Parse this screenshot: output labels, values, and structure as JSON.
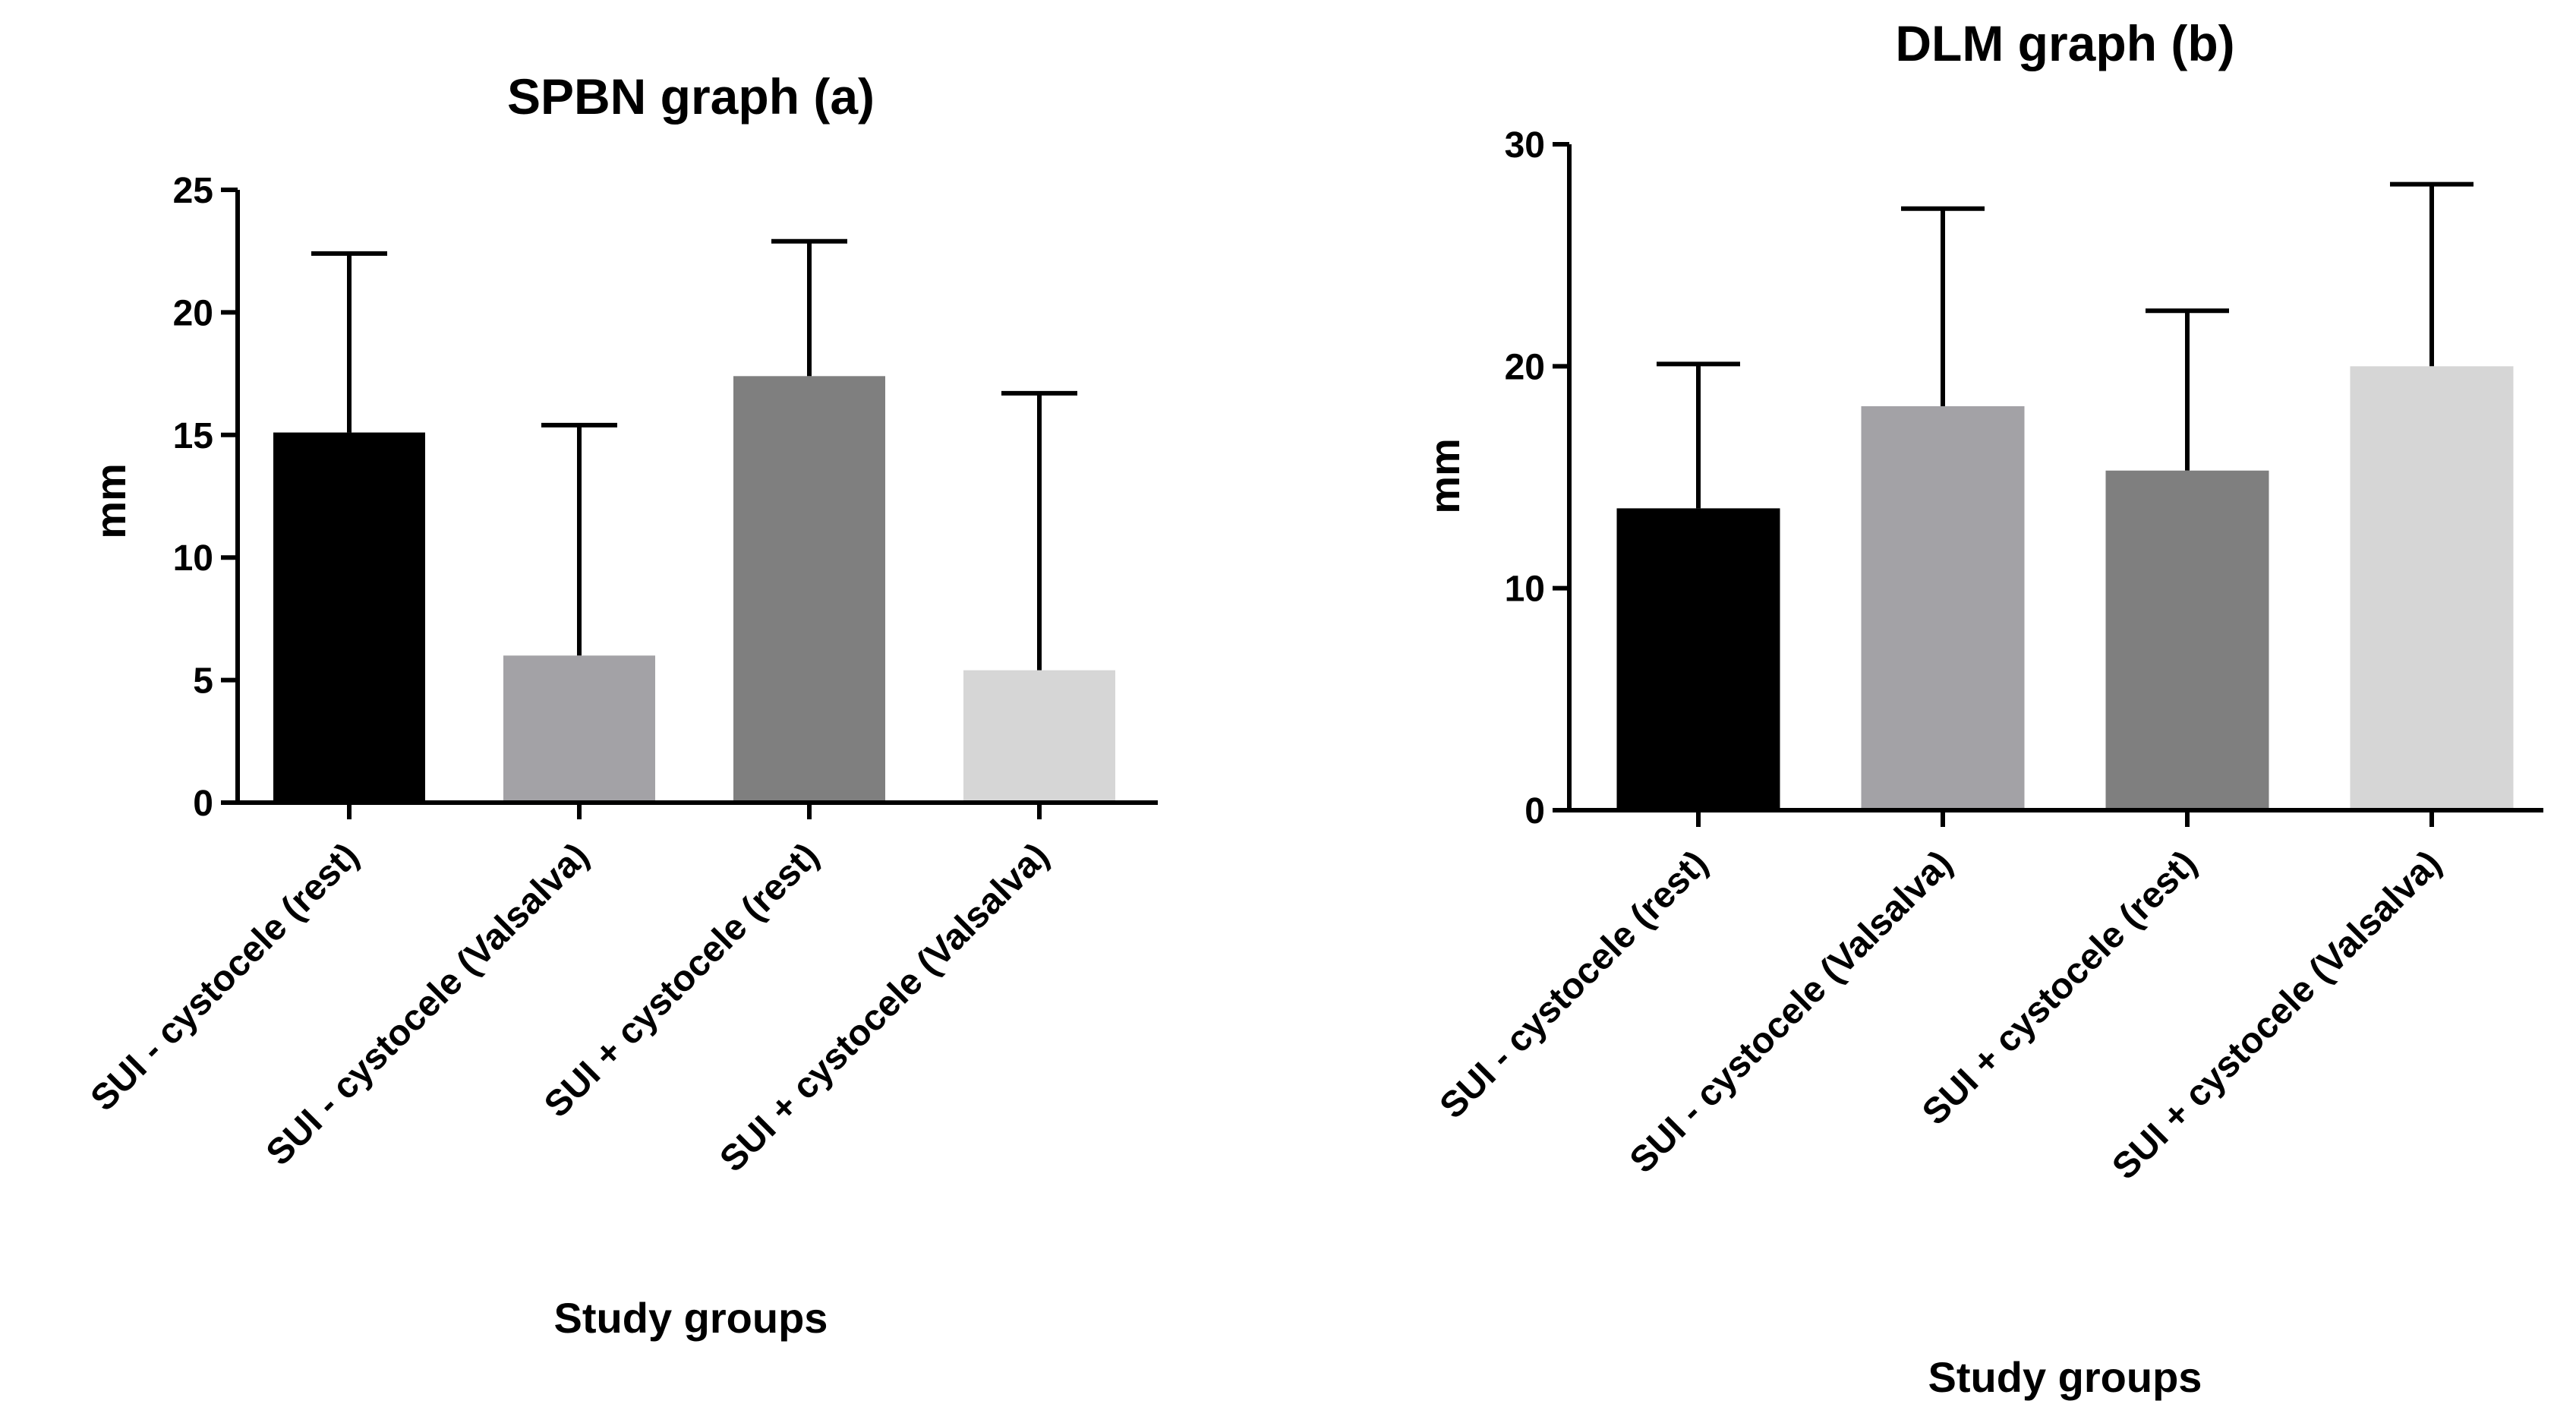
{
  "chart_data": [
    {
      "type": "bar",
      "title": "SPBN graph (a)",
      "xlabel": "Study groups",
      "ylabel": "mm",
      "ylim": [
        0,
        25
      ],
      "yticks": [
        0,
        5,
        10,
        15,
        20,
        25
      ],
      "ytick_labels": [
        "0",
        "5",
        "10",
        "15",
        "20",
        "25"
      ],
      "categories": [
        "SUI - cystocele (rest)",
        "SUI - cystocele (Valsalva)",
        "SUI + cystocele (rest)",
        "SUI + cystocele (Valsalva)"
      ],
      "values": [
        15.1,
        6.0,
        17.4,
        5.4
      ],
      "error_upper": [
        22.4,
        15.4,
        22.9,
        16.7
      ],
      "colors": [
        "#000000",
        "#a3a2a6",
        "#7f7f7f",
        "#d6d6d6"
      ]
    },
    {
      "type": "bar",
      "title": "DLM graph (b)",
      "xlabel": "Study groups",
      "ylabel": "mm",
      "ylim": [
        0,
        30
      ],
      "yticks": [
        0,
        10,
        20,
        30
      ],
      "ytick_labels": [
        "0",
        "10",
        "20",
        "30"
      ],
      "categories": [
        "SUI - cystocele (rest)",
        "SUI - cystocele (Valsalva)",
        "SUI + cystocele (rest)",
        "SUI + cystocele (Valsalva)"
      ],
      "values": [
        13.6,
        18.2,
        15.3,
        20.0
      ],
      "error_upper": [
        20.1,
        27.1,
        22.5,
        28.2
      ],
      "colors": [
        "#000000",
        "#a3a2a6",
        "#7f7f7f",
        "#d6d6d6"
      ]
    }
  ]
}
